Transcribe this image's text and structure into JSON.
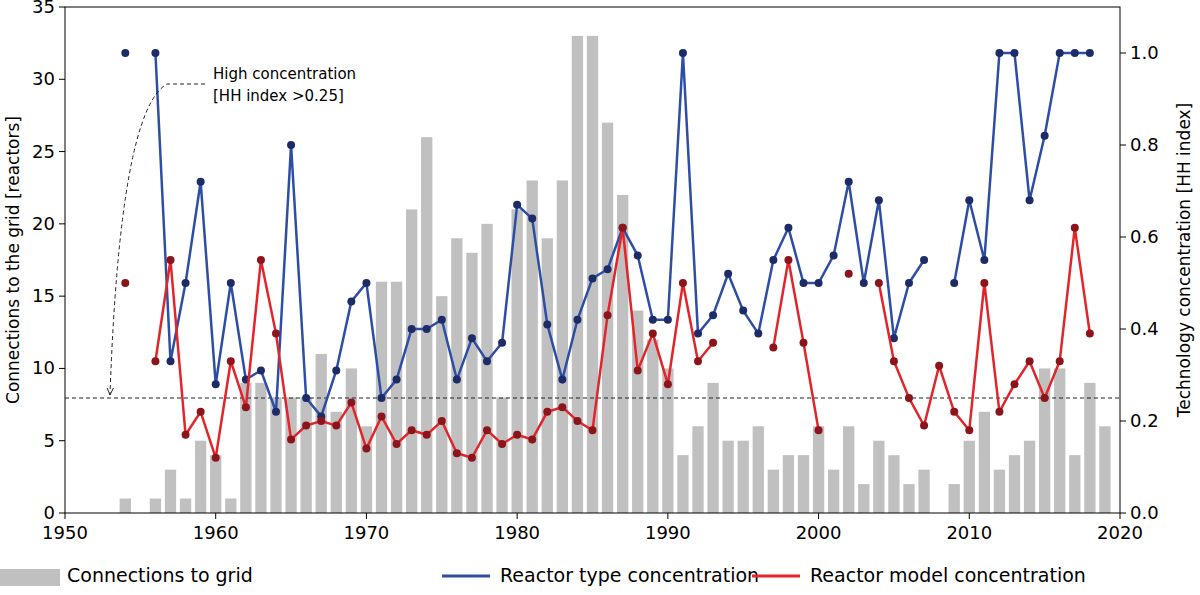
{
  "chart_data": {
    "type": "bar",
    "y_label": "Connections to the grid [reactors]",
    "y2_label": "Technology concentration [HH index]",
    "x": [
      1954,
      1955,
      1956,
      1957,
      1958,
      1959,
      1960,
      1961,
      1962,
      1963,
      1964,
      1965,
      1966,
      1967,
      1968,
      1969,
      1970,
      1971,
      1972,
      1973,
      1974,
      1975,
      1976,
      1977,
      1978,
      1979,
      1980,
      1981,
      1982,
      1983,
      1984,
      1985,
      1986,
      1987,
      1988,
      1989,
      1990,
      1991,
      1992,
      1993,
      1994,
      1995,
      1996,
      1997,
      1998,
      1999,
      2000,
      2001,
      2002,
      2003,
      2004,
      2005,
      2006,
      2007,
      2008,
      2009,
      2010,
      2011,
      2012,
      2013,
      2014,
      2015,
      2016,
      2017,
      2018,
      2019
    ],
    "xlim": [
      1950,
      2020
    ],
    "xticks": [
      1950,
      1960,
      1970,
      1980,
      1990,
      2000,
      2010,
      2020
    ],
    "ylim": [
      0,
      35
    ],
    "yticks": [
      0,
      5,
      10,
      15,
      20,
      25,
      30,
      35
    ],
    "y2lim": [
      0,
      1.1
    ],
    "y2ticks": [
      {
        "value": 0,
        "label": "0.0"
      },
      {
        "value": 0.2,
        "label": "0.2"
      },
      {
        "value": 0.4,
        "label": "0.4"
      },
      {
        "value": 0.6,
        "label": "0.6"
      },
      {
        "value": 0.8,
        "label": "0.8"
      },
      {
        "value": 1,
        "label": "1.0"
      }
    ],
    "legend": "bottom",
    "series": [
      {
        "name": "Connections to grid",
        "type": "bar",
        "color": "#c0c0c0",
        "values": [
          1,
          0,
          1,
          3,
          1,
          5,
          4,
          1,
          9,
          9,
          8,
          8,
          8,
          11,
          7,
          10,
          6,
          16,
          16,
          21,
          26,
          15,
          19,
          18,
          20,
          8,
          21,
          23,
          19,
          23,
          33,
          33,
          27,
          22,
          14,
          12,
          10,
          4,
          6,
          9,
          5,
          5,
          6,
          3,
          4,
          4,
          6,
          3,
          6,
          2,
          5,
          4,
          2,
          3,
          0,
          2,
          5,
          7,
          3,
          4,
          5,
          10,
          10,
          4,
          9,
          6
        ]
      },
      {
        "name": "Reactor type concentration",
        "type": "line",
        "axis": "y2",
        "color": "#2e4ea6",
        "marker": "circle",
        "line_style": "solid",
        "values": [
          1.0,
          null,
          1.0,
          0.33,
          0.5,
          0.72,
          0.28,
          0.5,
          0.29,
          0.31,
          0.22,
          0.8,
          0.25,
          0.21,
          0.31,
          0.46,
          0.5,
          0.25,
          0.29,
          0.4,
          0.4,
          0.42,
          0.29,
          0.38,
          0.33,
          0.37,
          0.67,
          0.64,
          0.41,
          0.29,
          0.42,
          0.51,
          0.53,
          0.62,
          0.56,
          0.42,
          0.42,
          1.0,
          0.39,
          0.43,
          0.52,
          0.44,
          0.39,
          0.55,
          0.62,
          0.5,
          0.5,
          0.56,
          0.72,
          0.5,
          0.68,
          0.38,
          0.5,
          0.55,
          null,
          0.5,
          0.68,
          0.55,
          1.0,
          1.0,
          0.68,
          0.82,
          1.0,
          1.0,
          1.0,
          null
        ]
      },
      {
        "name": "Reactor model concentration",
        "type": "line",
        "axis": "y2",
        "color": "#e2252b",
        "marker": "circle",
        "line_style": "solid",
        "values": [
          0.5,
          null,
          0.33,
          0.55,
          0.17,
          0.22,
          0.12,
          0.33,
          0.23,
          0.55,
          0.39,
          0.16,
          0.19,
          0.2,
          0.19,
          0.24,
          0.14,
          0.21,
          0.15,
          0.18,
          0.17,
          0.2,
          0.13,
          0.12,
          0.18,
          0.15,
          0.17,
          0.16,
          0.22,
          0.23,
          0.2,
          0.18,
          0.43,
          0.62,
          0.31,
          0.39,
          0.28,
          0.5,
          0.33,
          0.37,
          null,
          null,
          null,
          0.36,
          0.55,
          0.37,
          0.18,
          null,
          0.52,
          null,
          0.5,
          0.33,
          0.25,
          0.19,
          0.32,
          0.22,
          0.18,
          0.5,
          0.22,
          0.28,
          0.33,
          0.25,
          0.33,
          0.62,
          0.39,
          null
        ]
      }
    ],
    "annotations": [
      {
        "text": [
          "High concentration",
          "[HH index >0.25]"
        ],
        "y2": 0.25,
        "line_style": "dashed"
      }
    ]
  }
}
